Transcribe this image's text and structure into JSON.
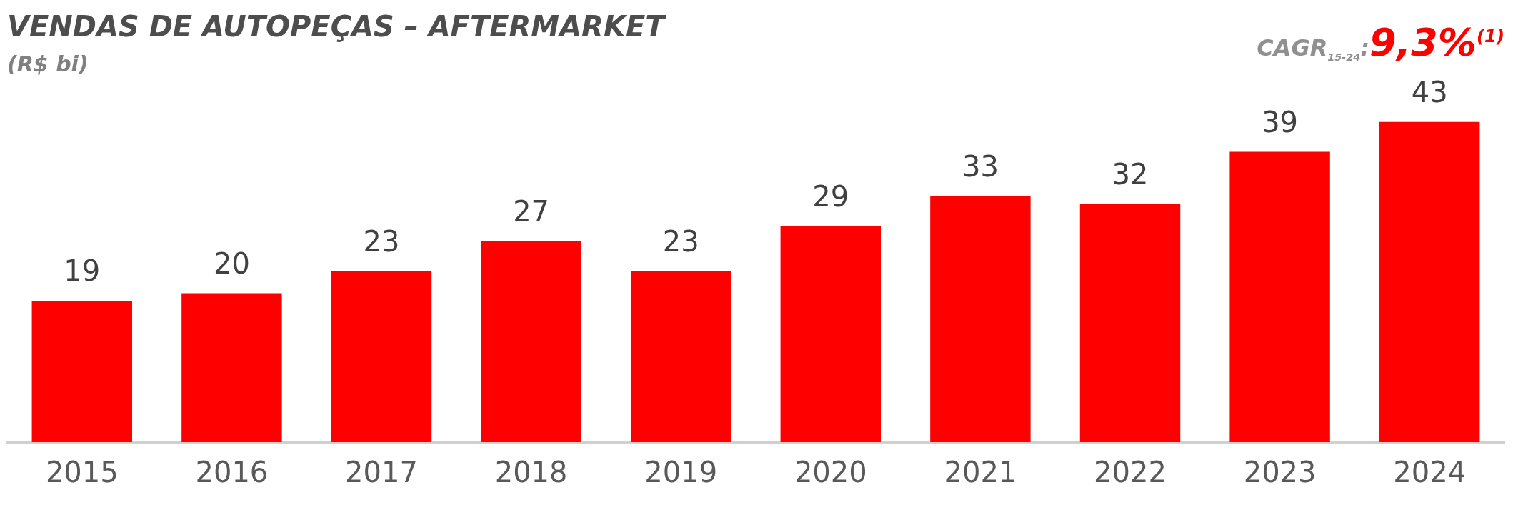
{
  "chart_data": {
    "type": "bar",
    "title": "VENDAS DE AUTOPEÇAS – AFTERMARKET",
    "subtitle": "(R$ bi)",
    "annotations": [
      "CAGR$_{15-24}$:",
      "9,3%$^{(1)}$"
    ],
    "categories": [
      "2015",
      "2016",
      "2017",
      "2018",
      "2019",
      "2020",
      "2021",
      "2022",
      "2023",
      "2024"
    ],
    "values": [
      19,
      20,
      23,
      27,
      23,
      29,
      33,
      32,
      39,
      43
    ],
    "color": "#ff0000",
    "data_labels": true,
    "grid": false,
    "legend": false
  }
}
